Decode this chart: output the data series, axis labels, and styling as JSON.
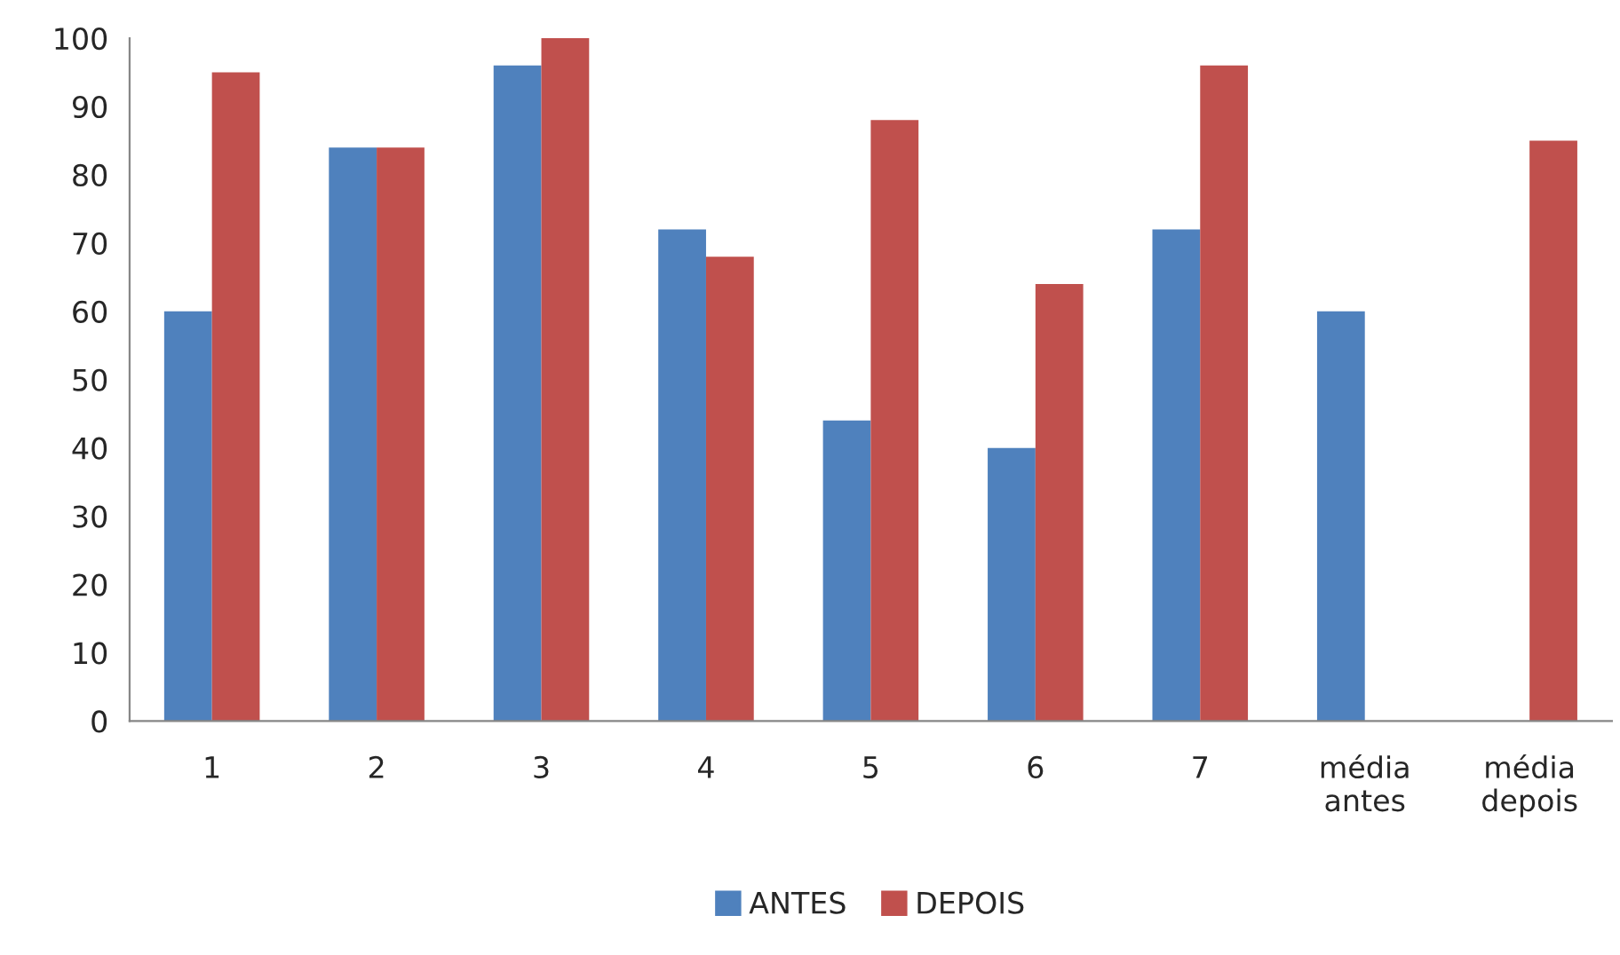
{
  "chart_data": {
    "type": "bar",
    "categories": [
      "1",
      "2",
      "3",
      "4",
      "5",
      "6",
      "7",
      "média antes",
      "média depois"
    ],
    "series": [
      {
        "name": "ANTES",
        "color": "#4f81bd",
        "values": [
          60,
          84,
          96,
          72,
          44,
          40,
          72,
          60,
          null
        ]
      },
      {
        "name": "DEPOIS",
        "color": "#c0504d",
        "values": [
          95,
          84,
          100,
          68,
          88,
          64,
          96,
          null,
          85
        ]
      }
    ],
    "ylim": [
      0,
      100
    ],
    "yticks": [
      0,
      10,
      20,
      30,
      40,
      50,
      60,
      70,
      80,
      90,
      100
    ],
    "grid": false,
    "legend": "bottom"
  }
}
